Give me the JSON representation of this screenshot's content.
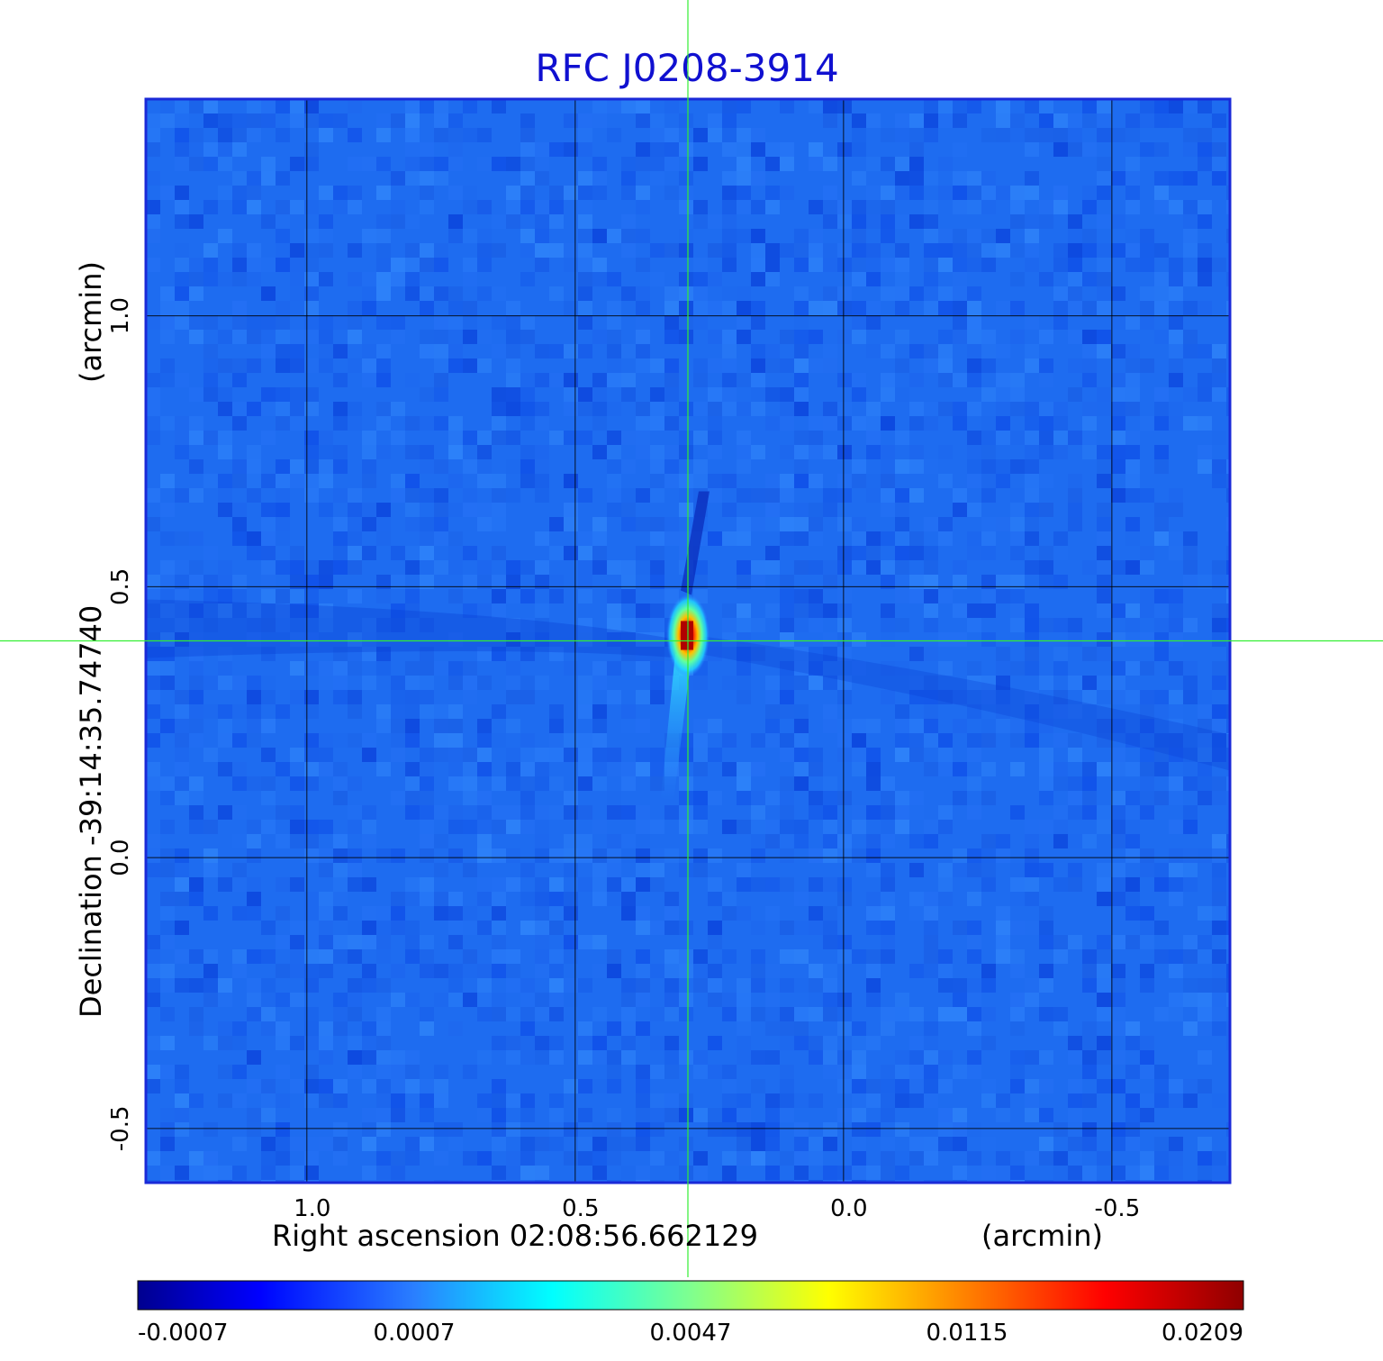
{
  "chart_data": {
    "type": "heatmap",
    "title": "RFC J0208-3914",
    "xlabel": "Right ascension  02:08:56.662129",
    "xunit": "(arcmin)",
    "ylabel": "Declination  -39:14:35.74740",
    "yunit": "(arcmin)",
    "xlim": [
      1.3,
      -0.72
    ],
    "ylim": [
      -0.6,
      1.4
    ],
    "x_ticks": [
      {
        "value": 1.0,
        "label": "1.0"
      },
      {
        "value": 0.5,
        "label": "0.5"
      },
      {
        "value": 0.0,
        "label": "0.0"
      },
      {
        "value": -0.5,
        "label": "-0.5"
      }
    ],
    "y_ticks": [
      {
        "value": 1.0,
        "label": "1.0"
      },
      {
        "value": 0.5,
        "label": "0.5"
      },
      {
        "value": 0.0,
        "label": "0.0"
      },
      {
        "value": -0.5,
        "label": "-0.5"
      }
    ],
    "grid": true,
    "crosshair": {
      "x": 0.29,
      "y": 0.4,
      "color": "#33ee33"
    },
    "peak": {
      "x": 0.29,
      "y": 0.41,
      "value": 0.0209
    },
    "colorbar": {
      "colormap": "jet",
      "tick_labels": [
        "-0.0007",
        "0.0007",
        "0.0047",
        "0.0115",
        "0.0209"
      ],
      "min": -0.0007,
      "max": 0.0209
    },
    "colors": {
      "background_field": "#1e6cf0",
      "title": "#1010d0",
      "frame": "#1a2ad8"
    }
  }
}
